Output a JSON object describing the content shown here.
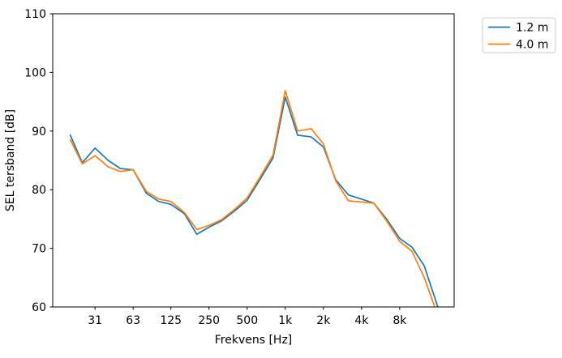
{
  "chart_data": {
    "type": "line",
    "title": "",
    "xlabel": "Frekvens [Hz]",
    "ylabel": "SEL tersband [dB]",
    "xscale": "log",
    "grid": false,
    "xlim": [
      14.6,
      21520
    ],
    "ylim": [
      60,
      110
    ],
    "x": [
      20,
      25,
      31.5,
      40,
      50,
      63,
      80,
      100,
      125,
      160,
      200,
      250,
      315,
      400,
      500,
      630,
      800,
      1000,
      1250,
      1600,
      2000,
      2500,
      3150,
      4000,
      5000,
      6300,
      8000,
      10000,
      12500,
      16000
    ],
    "series": [
      {
        "name": "1.2 m",
        "color": "#1f77b4",
        "values": [
          89.4,
          84.6,
          87.1,
          85.0,
          83.6,
          83.4,
          79.4,
          78.0,
          77.5,
          75.9,
          72.4,
          73.6,
          74.7,
          76.4,
          78.2,
          81.7,
          85.4,
          95.8,
          89.3,
          89.0,
          87.3,
          81.7,
          79.1,
          78.4,
          77.7,
          75.0,
          71.7,
          70.2,
          67.0,
          60.0
        ]
      },
      {
        "name": "4.0 m",
        "color": "#ff7f0e",
        "values": [
          88.6,
          84.4,
          85.8,
          83.9,
          83.1,
          83.4,
          79.7,
          78.4,
          78.0,
          76.1,
          73.2,
          73.9,
          74.9,
          76.7,
          78.6,
          82.1,
          85.9,
          96.9,
          90.0,
          90.4,
          87.8,
          81.5,
          78.1,
          77.9,
          77.7,
          74.7,
          71.2,
          69.5,
          65.0,
          58.5
        ]
      }
    ],
    "xticks": {
      "values": [
        31.5,
        63,
        125,
        250,
        500,
        1000,
        2000,
        4000,
        8000
      ],
      "labels": [
        "31",
        "63",
        "125",
        "250",
        "500",
        "1k",
        "2k",
        "4k",
        "8k"
      ]
    },
    "yticks": {
      "values": [
        60,
        70,
        80,
        90,
        100,
        110
      ],
      "labels": [
        "60",
        "70",
        "80",
        "90",
        "100",
        "110"
      ]
    },
    "legend": {
      "position": "outside-upper-right",
      "entries": [
        "1.2 m",
        "4.0 m"
      ]
    }
  },
  "colors": {
    "background": "#ffffff",
    "spine": "#000000",
    "legend_border": "#cccccc",
    "series_blue": "#1f77b4",
    "series_orange": "#ff7f0e"
  }
}
